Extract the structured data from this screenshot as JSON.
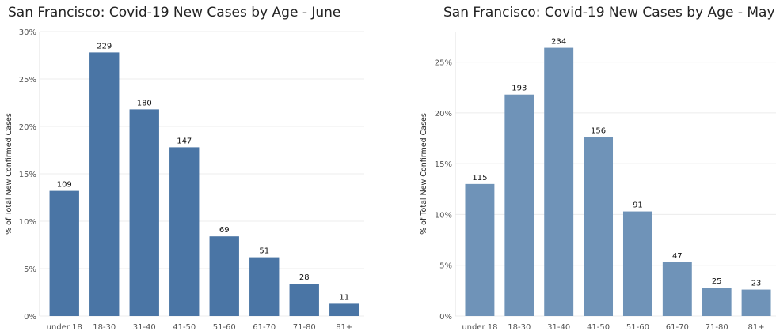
{
  "chart_data": [
    {
      "type": "bar",
      "title": "San Francisco: Covid-19 New Cases by Age - June",
      "xlabel": "",
      "ylabel": "% of Total New Confirmed Cases",
      "categories": [
        "under 18",
        "18-30",
        "31-40",
        "41-50",
        "51-60",
        "61-70",
        "71-80",
        "81+"
      ],
      "values": [
        13.2,
        27.8,
        21.8,
        17.8,
        8.4,
        6.2,
        3.4,
        1.3
      ],
      "data_labels": [
        "109",
        "229",
        "180",
        "147",
        "69",
        "51",
        "28",
        "11"
      ],
      "ylim": [
        0,
        30
      ],
      "yticks": [
        0,
        5,
        10,
        15,
        20,
        25,
        30
      ],
      "ytick_labels": [
        "0%",
        "5%",
        "10%",
        "15%",
        "20%",
        "25%",
        "30%"
      ],
      "grid": true,
      "bar_color": "#4a75a5"
    },
    {
      "type": "bar",
      "title": "San Francisco: Covid-19 New Cases by Age - May",
      "xlabel": "",
      "ylabel": "% of Total New Confirmed Cases",
      "categories": [
        "under 18",
        "18-30",
        "31-40",
        "41-50",
        "51-60",
        "61-70",
        "71-80",
        "81+"
      ],
      "values": [
        13.0,
        21.8,
        26.4,
        17.6,
        10.3,
        5.3,
        2.8,
        2.6
      ],
      "data_labels": [
        "115",
        "193",
        "234",
        "156",
        "91",
        "47",
        "25",
        "23"
      ],
      "ylim": [
        0,
        28
      ],
      "yticks": [
        0,
        5,
        10,
        15,
        20,
        25
      ],
      "ytick_labels": [
        "0%",
        "5%",
        "10%",
        "15%",
        "20%",
        "25%"
      ],
      "grid": true,
      "bar_color": "#6f93b8"
    }
  ]
}
